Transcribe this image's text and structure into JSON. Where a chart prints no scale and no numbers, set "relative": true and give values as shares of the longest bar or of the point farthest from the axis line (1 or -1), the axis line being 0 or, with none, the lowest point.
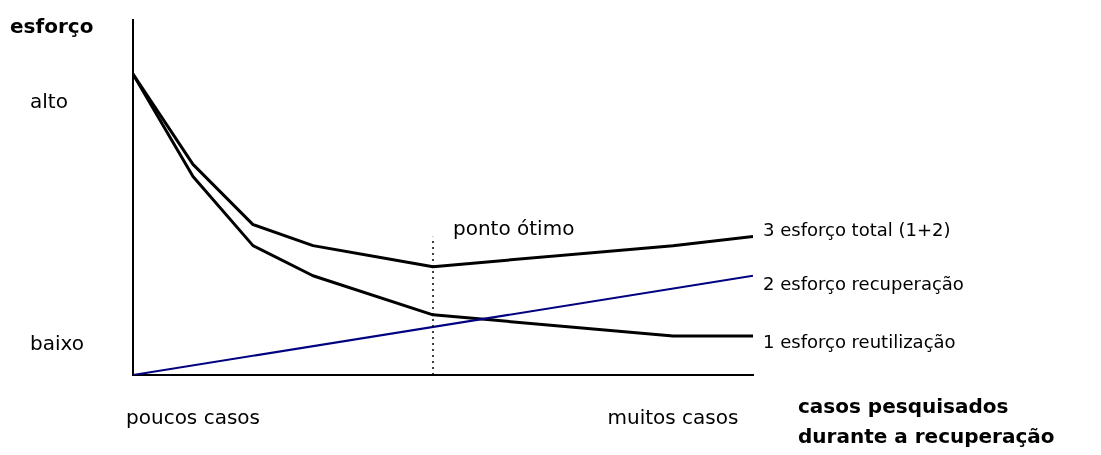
{
  "chart_data": {
    "type": "line",
    "relative": true,
    "ylabel": "esforço",
    "xlabel": "casos pesquisados\ndurante a recuperação",
    "categories": [
      null,
      null,
      null,
      "poucos casos",
      null,
      null,
      null,
      null,
      null,
      null,
      null,
      null,
      null,
      null,
      null,
      null,
      null,
      null,
      null,
      null,
      null,
      null,
      null,
      null,
      null,
      null,
      null,
      "muitos casos",
      null,
      null,
      null,
      null
    ],
    "series": [
      {
        "name": "3 esforço total (1+2)",
        "color": "#000000",
        "values": [
          1,
          null,
          null,
          0.7,
          null,
          null,
          0.5,
          null,
          null,
          0.43,
          null,
          null,
          null,
          null,
          null,
          0.36,
          null,
          null,
          null,
          null,
          null,
          null,
          null,
          null,
          null,
          null,
          null,
          0.43,
          null,
          null,
          null,
          0.46
        ]
      },
      {
        "name": "2 esforço recuperação",
        "color": "#000080",
        "values": [
          0,
          null,
          null,
          null,
          null,
          null,
          null,
          null,
          null,
          null,
          null,
          null,
          null,
          null,
          null,
          null,
          null,
          null,
          null,
          null,
          null,
          null,
          null,
          null,
          null,
          null,
          null,
          null,
          null,
          null,
          null,
          0.33
        ]
      },
      {
        "name": "1 esforço reutilização",
        "color": "#000000",
        "values": [
          1,
          null,
          null,
          0.66,
          null,
          null,
          0.43,
          null,
          null,
          0.33,
          null,
          null,
          null,
          null,
          null,
          0.2,
          null,
          null,
          null,
          null,
          null,
          null,
          null,
          null,
          null,
          null,
          null,
          0.13,
          null,
          null,
          null,
          0.13
        ]
      }
    ],
    "annotations": [
      "alto",
      "baixo"
    ],
    "ref_lines": [
      {
        "axis": "x",
        "label": "ponto ótimo",
        "line_style": "dotted",
        "color": "#000000"
      }
    ],
    "legend": false,
    "marker": "none",
    "line_style": "solid"
  }
}
